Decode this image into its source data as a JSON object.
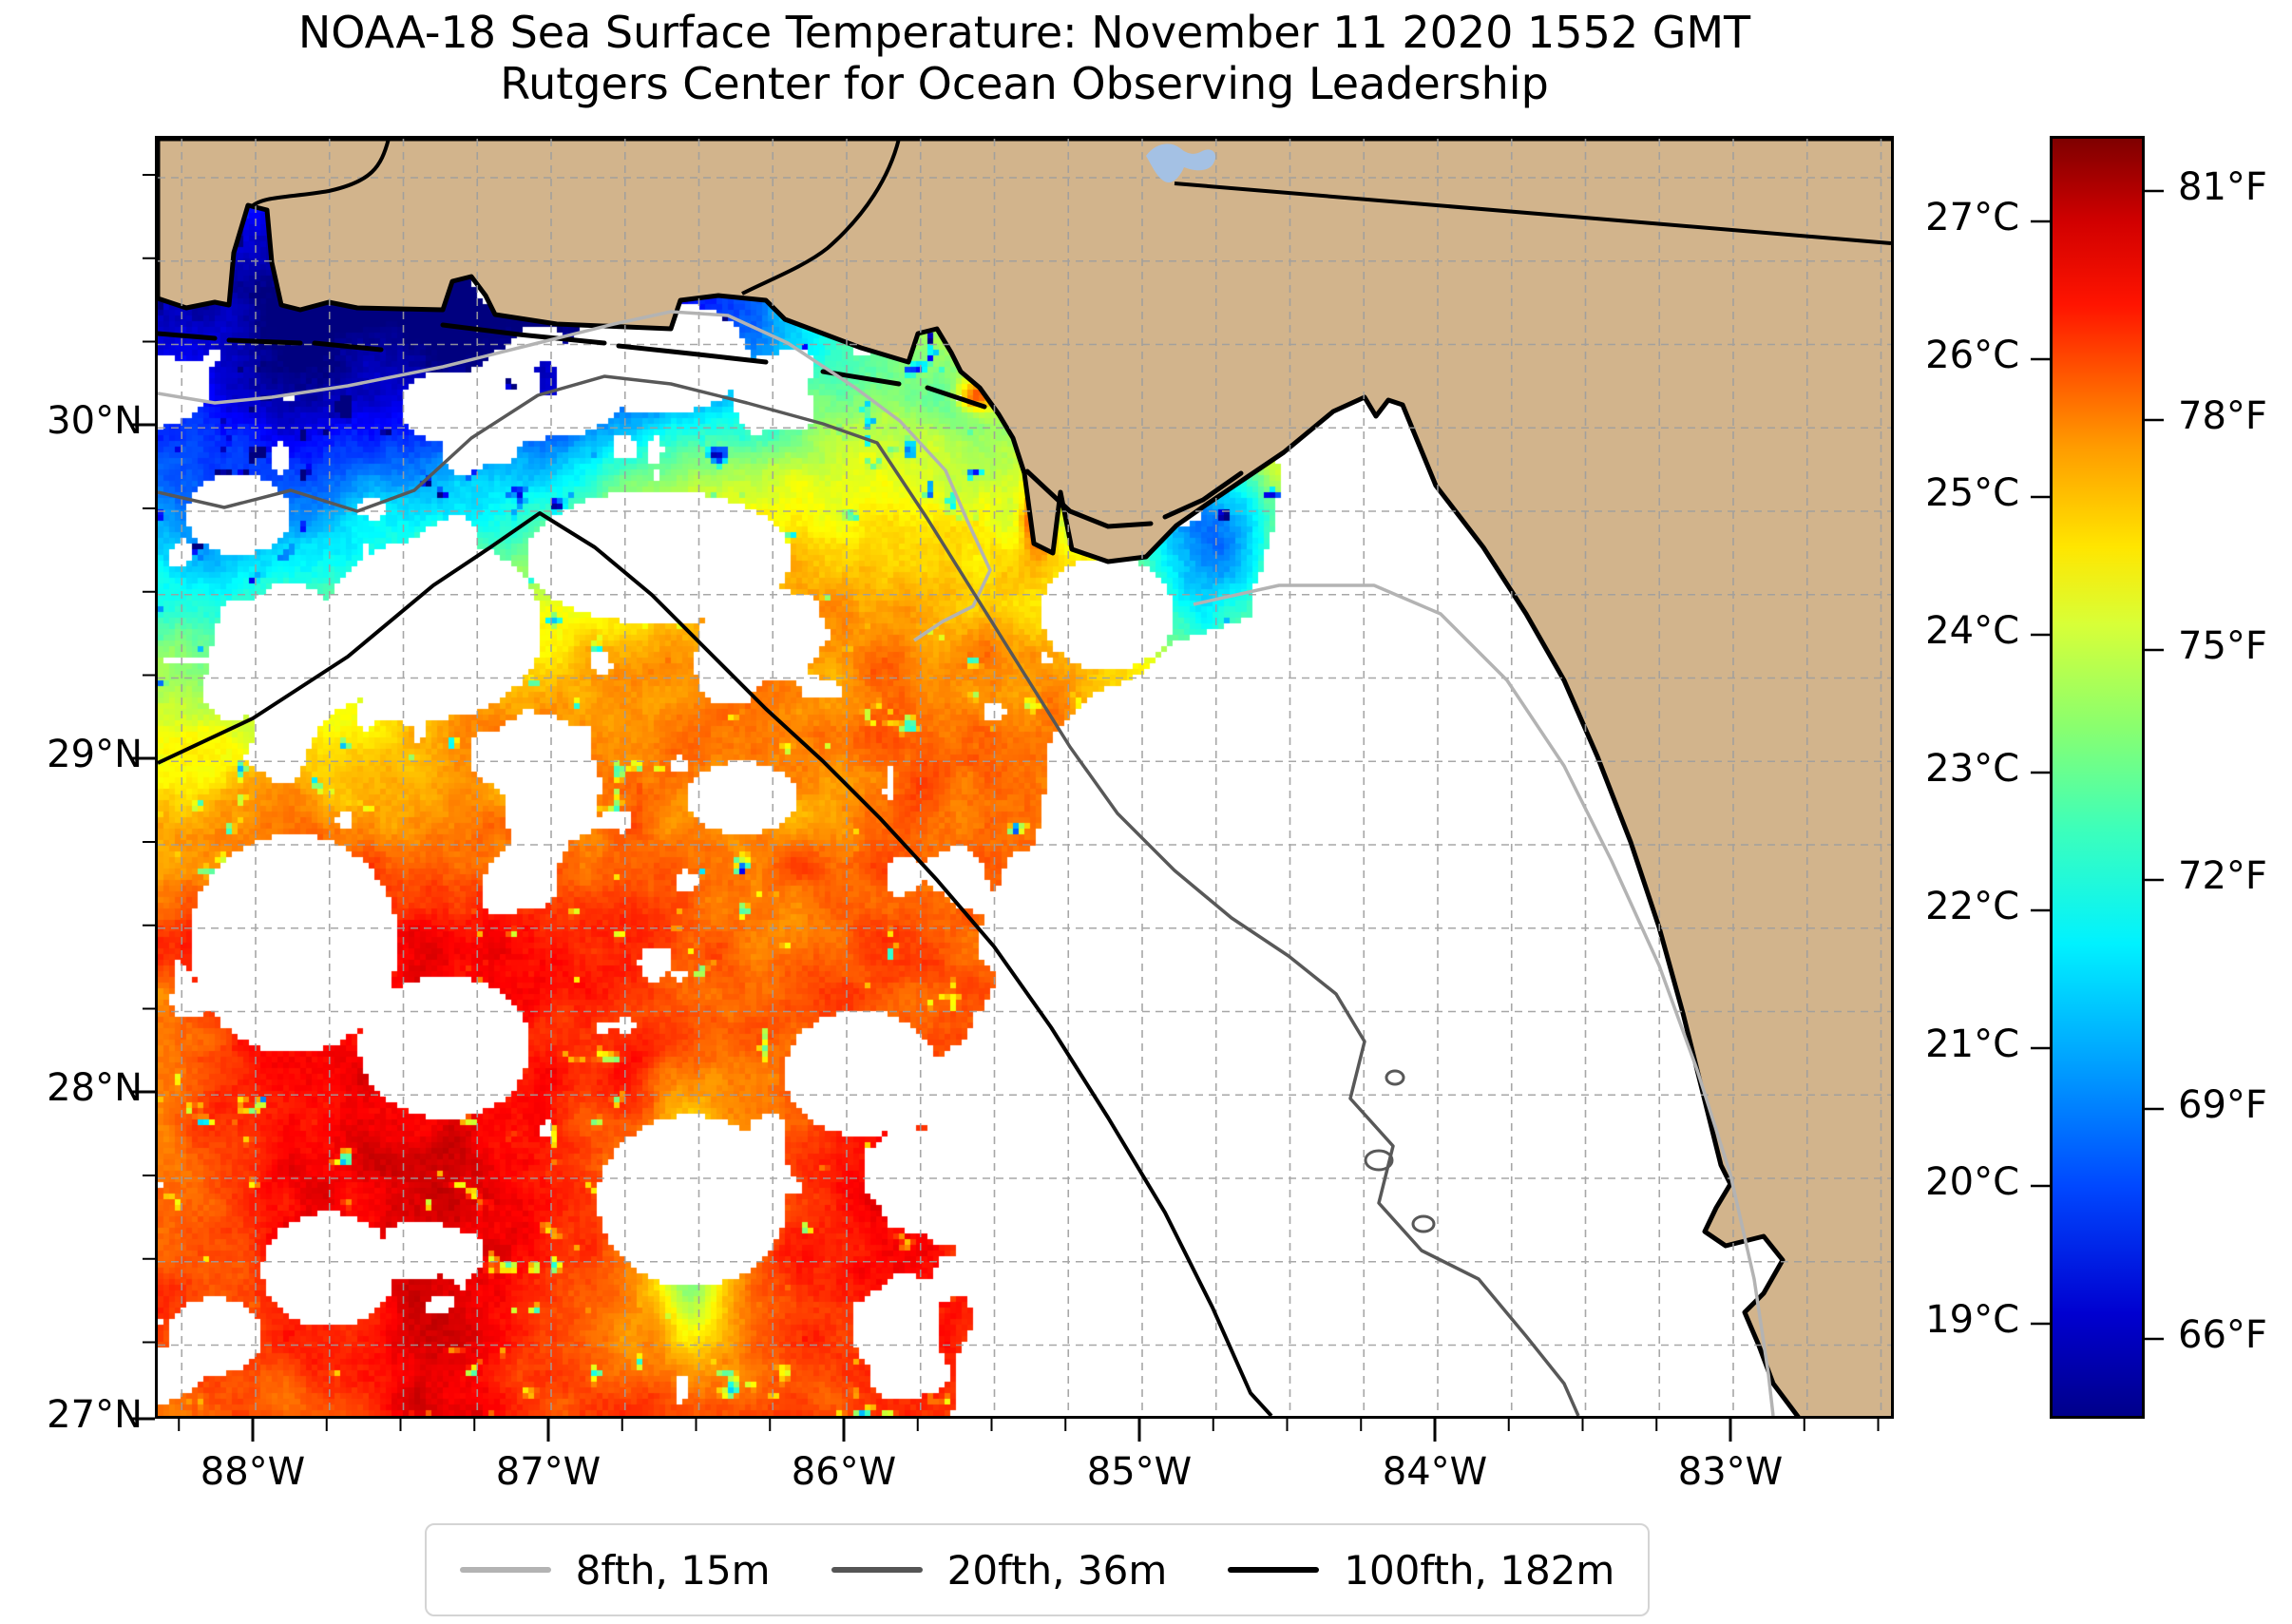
{
  "header": {
    "title": "NOAA-18 Sea Surface Temperature: November 11 2020 1552 GMT",
    "subtitle": "Rutgers Center for Ocean Observing Leadership"
  },
  "chart_data": {
    "type": "heatmap",
    "subtype": "satellite-sst-map",
    "title": "NOAA-18 Sea Surface Temperature: November 11 2020 1552 GMT",
    "subtitle": "Rutgers Center for Ocean Observing Leadership",
    "x_tick_labels": [
      "88°W",
      "87°W",
      "86°W",
      "85°W",
      "84°W",
      "83°W"
    ],
    "y_tick_labels": [
      "30°N",
      "29°N",
      "28°N",
      "27°N"
    ],
    "lon_range_west_deg": [
      88.3,
      82.4
    ],
    "lat_range_north_deg": [
      27.0,
      30.87
    ],
    "grid": {
      "visible": true,
      "spacing_deg": 0.25,
      "style": "dashed gray"
    },
    "colorbar": {
      "orientation": "vertical",
      "celsius_ticks": [
        "27°C",
        "26°C",
        "25°C",
        "24°C",
        "23°C",
        "22°C",
        "21°C",
        "20°C",
        "19°C"
      ],
      "fahrenheit_ticks": [
        "81°F",
        "78°F",
        "75°F",
        "72°F",
        "69°F",
        "66°F"
      ],
      "min_c": 18.3,
      "max_c": 27.6,
      "colormap": "jet (dark blue → blue → cyan → green → yellow → orange → red → dark red)"
    },
    "legend": [
      {
        "label": "8fth, 15m",
        "color": "#b3b3b3"
      },
      {
        "label": "20fth, 36m",
        "color": "#555555"
      },
      {
        "label": "100fth, 182m",
        "color": "#000000"
      }
    ],
    "legend_meaning": "bathymetry contours in fathoms and meters",
    "land_color": "#d2b48c",
    "lake_color": "#a4c1e4",
    "no_data_color": "#ffffff",
    "sst_features": [
      {
        "region": "Mississippi Sound / Mobile Bay (northwest corner)",
        "sst_c": "19-21",
        "appearance": "dark blue cold plume"
      },
      {
        "region": "Florida panhandle nearshore band (87°W-85°W)",
        "sst_c": "23-24.5",
        "appearance": "green-yellow coastal band"
      },
      {
        "region": "open Gulf west of 85.5°W",
        "sst_c": "25-26.5",
        "appearance": "orange with red cores south of 28°N"
      },
      {
        "region": "east of ~85.3°W and Florida shelf",
        "sst_c": null,
        "appearance": "white (no satellite retrieval)"
      },
      {
        "region": "scattered pixels along cloud edges",
        "sst_c": "20-22",
        "appearance": "blue/cyan speckles"
      },
      {
        "region": "clouds",
        "sst_c": null,
        "appearance": "white gaps inside the field"
      }
    ]
  },
  "icons": {
    "lake": "lake-polygon",
    "river": "river-line"
  }
}
